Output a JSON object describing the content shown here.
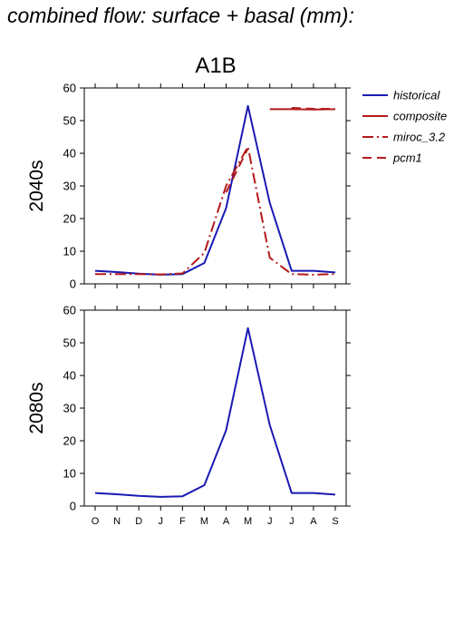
{
  "page": {
    "title": "combined flow: surface + basal (mm):"
  },
  "colors": {
    "historical": "#1a1ab4",
    "scenario": "#b41a1a",
    "axis": "#000000"
  },
  "chart_data": [
    {
      "type": "line",
      "title": "A1B",
      "panel_label": "2040s",
      "categories": [
        "O",
        "N",
        "D",
        "J",
        "F",
        "M",
        "A",
        "M",
        "J",
        "J",
        "A",
        "S"
      ],
      "ylim": [
        0,
        60
      ],
      "yticks": [
        0,
        10,
        20,
        30,
        40,
        50,
        60
      ],
      "grid": false,
      "legend_position": "right",
      "series": [
        {
          "name": "historical",
          "style": "solid",
          "color": "#1a1ab4",
          "values": [
            4.0,
            3.6,
            3.1,
            2.8,
            3.0,
            6.4,
            23.2,
            54.5,
            24.8,
            4.0,
            4.0,
            3.5
          ]
        },
        {
          "name": "composite",
          "style": "solid",
          "color": "#b41a1a",
          "values": [
            null,
            null,
            null,
            null,
            null,
            null,
            null,
            null,
            53.5,
            53.5,
            53.4,
            53.5
          ]
        },
        {
          "name": "miroc_3.2",
          "style": "dashdot",
          "color": "#b41a1a",
          "values": [
            3.0,
            3.0,
            3.0,
            2.9,
            3.2,
            9.5,
            30.0,
            42.0,
            8.0,
            3.0,
            2.8,
            3.0
          ]
        },
        {
          "name": "pcm1",
          "style": "dashed",
          "color": "#b41a1a",
          "values": [
            null,
            null,
            null,
            null,
            null,
            null,
            28.0,
            41.5,
            null,
            53.9,
            53.6,
            53.6
          ]
        }
      ]
    },
    {
      "type": "line",
      "panel_label": "2080s",
      "categories": [
        "O",
        "N",
        "D",
        "J",
        "F",
        "M",
        "A",
        "M",
        "J",
        "J",
        "A",
        "S"
      ],
      "ylim": [
        0,
        60
      ],
      "yticks": [
        0,
        10,
        20,
        30,
        40,
        50,
        60
      ],
      "grid": false,
      "series": [
        {
          "name": "historical",
          "style": "solid",
          "color": "#1a1ab4",
          "values": [
            4.0,
            3.6,
            3.1,
            2.8,
            3.0,
            6.4,
            23.2,
            54.5,
            24.8,
            4.0,
            4.0,
            3.5
          ]
        }
      ]
    }
  ],
  "legend": {
    "items": [
      {
        "label": "historical",
        "style": "solid",
        "color": "#1a1ab4"
      },
      {
        "label": "composite",
        "style": "solid",
        "color": "#b41a1a"
      },
      {
        "label": "miroc_3.2",
        "style": "dashdot",
        "color": "#b41a1a"
      },
      {
        "label": "pcm1",
        "style": "dashed",
        "color": "#b41a1a"
      }
    ]
  }
}
